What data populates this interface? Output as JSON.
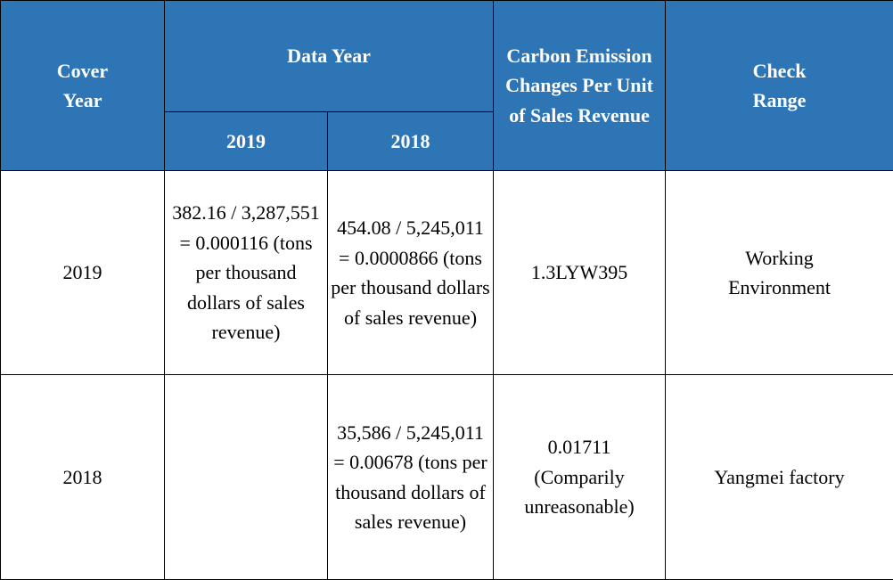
{
  "header": {
    "cover_year": "Cover Year",
    "data_year": "Data Year",
    "data_year_2019": "2019",
    "data_year_2018": "2018",
    "carbon": "Carbon Emission Changes Per Unit of Sales Revenue",
    "check_range": "Check Range"
  },
  "rows": [
    {
      "cover_year": "2019",
      "y2019": "382.16 / 3,287,551 = 0.000116 (tons per thousand dollars of sales revenue)",
      "y2018": "454.08 / 5,245,011 = 0.0000866 (tons per thousand dollars of sales revenue)",
      "carbon": "1.3LYW395",
      "check_range": "Working Environment"
    },
    {
      "cover_year": "2018",
      "y2019": "",
      "y2018": "35,586 / 5,245,011 = 0.00678 (tons per thousand dollars of sales revenue)",
      "carbon": "0.01711 (Comparily unreasonable)",
      "check_range": "Yangmei factory"
    }
  ],
  "colors": {
    "header_bg": "#2e75b6",
    "header_text": "#ffffff"
  }
}
